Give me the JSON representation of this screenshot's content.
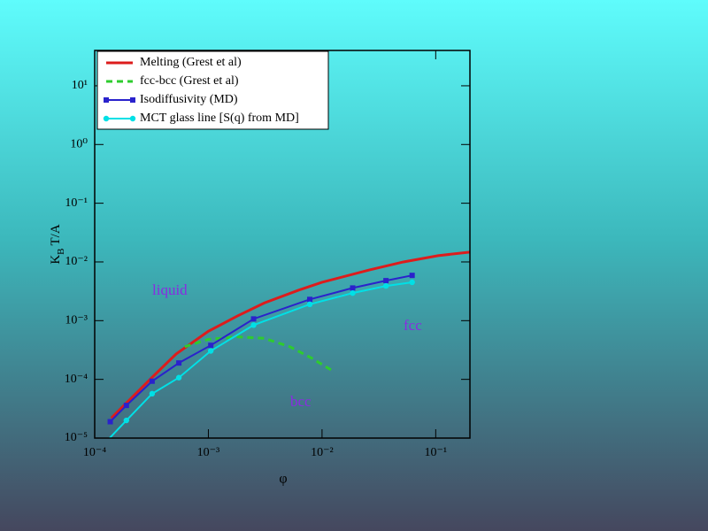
{
  "chart_data": {
    "type": "line",
    "x_label": "φ",
    "y_label": [
      "K",
      "B",
      "T/A"
    ],
    "x_log": true,
    "y_log": true,
    "xlim": [
      0.0001,
      0.2
    ],
    "ylim": [
      1e-05,
      40
    ],
    "xticks": [
      {
        "value": 0.0001,
        "label": "10⁻⁴"
      },
      {
        "value": 0.001,
        "label": "10⁻³"
      },
      {
        "value": 0.01,
        "label": "10⁻²"
      },
      {
        "value": 0.1,
        "label": "10⁻¹"
      }
    ],
    "yticks": [
      {
        "value": 1e-05,
        "label": "10⁻⁵"
      },
      {
        "value": 0.0001,
        "label": "10⁻⁴"
      },
      {
        "value": 0.001,
        "label": "10⁻³"
      },
      {
        "value": 0.01,
        "label": "10⁻²"
      },
      {
        "value": 0.1,
        "label": "10⁻¹"
      },
      {
        "value": 1,
        "label": "10⁰"
      },
      {
        "value": 10,
        "label": "10¹"
      }
    ],
    "legend": "top-left",
    "annotations": [
      "liquid",
      "fcc",
      "bcc"
    ],
    "series": [
      {
        "name": "Melting  (Grest et al)",
        "color": "#dd1c1c",
        "dash": false,
        "marker": null,
        "x": [
          0.00014,
          0.00021,
          0.00033,
          0.00052,
          0.001,
          0.0018,
          0.0031,
          0.0062,
          0.01,
          0.026,
          0.052,
          0.105,
          0.2
        ],
        "values": [
          2.2e-05,
          4.8e-05,
          0.000115,
          0.00027,
          0.00066,
          0.0012,
          0.002,
          0.0033,
          0.0045,
          0.0073,
          0.01,
          0.0128,
          0.0147
        ]
      },
      {
        "name": "fcc-bcc (Grest et al)",
        "color": "#2ecc2e",
        "dash": true,
        "marker": null,
        "x": [
          0.00062,
          0.001,
          0.0018,
          0.0031,
          0.0052,
          0.0081,
          0.0126
        ],
        "values": [
          0.00036,
          0.00048,
          0.00053,
          0.0005,
          0.00036,
          0.00023,
          0.000137
        ]
      },
      {
        "name": "Isodiffusivity (MD)",
        "color": "#2a22cc",
        "dash": false,
        "marker": "square",
        "x": [
          0.000137,
          0.00019,
          0.00032,
          0.00055,
          0.00105,
          0.0025,
          0.0078,
          0.0186,
          0.0365,
          0.062
        ],
        "values": [
          1.9e-05,
          3.6e-05,
          9.3e-05,
          0.00019,
          0.00038,
          0.00107,
          0.0023,
          0.0036,
          0.0048,
          0.0059
        ]
      },
      {
        "name": "MCT glass line [S(q) from MD]",
        "color": "#00e0e6",
        "dash": false,
        "marker": "circle",
        "x": [
          0.000125,
          0.00019,
          0.00032,
          0.00055,
          0.00105,
          0.0025,
          0.0078,
          0.0186,
          0.0365,
          0.062
        ],
        "values": [
          8.5e-06,
          2e-05,
          5.7e-05,
          0.000107,
          0.000305,
          0.00084,
          0.0019,
          0.00295,
          0.0039,
          0.0045
        ]
      }
    ]
  }
}
